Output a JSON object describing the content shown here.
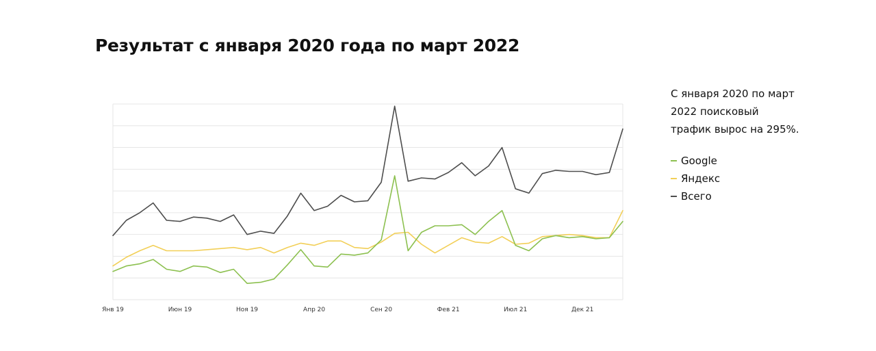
{
  "title": "Результат с января 2020 года по март 2022",
  "sidebar": {
    "text": "С января 2020 по март 2022 поисковый трафик вырос на 295%."
  },
  "colors": {
    "google": "#8cc04f",
    "yandex": "#f2cf57",
    "total": "#4d4d4d",
    "grid": "#e6e6e6",
    "background": "#ffffff"
  },
  "chart_data": {
    "type": "line",
    "xlabel": "",
    "ylabel": "",
    "x_ticks": [
      "Янв 19",
      "Июн 19",
      "Ноя 19",
      "Апр 20",
      "Сен 20",
      "Фев 21",
      "Июл 21",
      "Дек 21"
    ],
    "x": [
      "Янв 19",
      "Фев 19",
      "Мар 19",
      "Апр 19",
      "Май 19",
      "Июн 19",
      "Июл 19",
      "Авг 19",
      "Сен 19",
      "Окт 19",
      "Ноя 19",
      "Дек 19",
      "Янв 20",
      "Фев 20",
      "Мар 20",
      "Апр 20",
      "Май 20",
      "Июн 20",
      "Июл 20",
      "Авг 20",
      "Сен 20",
      "Окт 20",
      "Ноя 20",
      "Дек 20",
      "Янв 21",
      "Фев 21",
      "Мар 21",
      "Апр 21",
      "Май 21",
      "Июн 21",
      "Июл 21",
      "Авг 21",
      "Сен 21",
      "Окт 21",
      "Ноя 21",
      "Дек 21",
      "Янв 22",
      "Фев 22",
      "Мар 22"
    ],
    "ylim": [
      0,
      9
    ],
    "y_gridlines": 9,
    "grid": true,
    "y_tick_labels": false,
    "legend": "right",
    "series": [
      {
        "name": "Google",
        "color_key": "google",
        "values": [
          1.3,
          1.55,
          1.65,
          1.85,
          1.4,
          1.3,
          1.55,
          1.5,
          1.25,
          1.4,
          0.75,
          0.8,
          0.95,
          1.6,
          2.3,
          1.55,
          1.5,
          2.1,
          2.05,
          2.15,
          2.75,
          5.7,
          2.25,
          3.1,
          3.4,
          3.4,
          3.45,
          3.0,
          3.6,
          4.1,
          2.5,
          2.25,
          2.8,
          2.95,
          2.85,
          2.9,
          2.8,
          2.85,
          3.6
        ]
      },
      {
        "name": "Яндекс",
        "color_key": "yandex",
        "values": [
          1.55,
          1.95,
          2.25,
          2.5,
          2.25,
          2.25,
          2.25,
          2.3,
          2.35,
          2.4,
          2.3,
          2.4,
          2.15,
          2.4,
          2.6,
          2.5,
          2.7,
          2.7,
          2.4,
          2.35,
          2.65,
          3.05,
          3.1,
          2.55,
          2.15,
          2.5,
          2.85,
          2.65,
          2.6,
          2.9,
          2.55,
          2.6,
          2.9,
          2.95,
          3.0,
          2.95,
          2.85,
          2.85,
          4.1
        ]
      },
      {
        "name": "Всего",
        "color_key": "total",
        "values": [
          2.95,
          3.65,
          4.0,
          4.45,
          3.65,
          3.6,
          3.8,
          3.75,
          3.6,
          3.9,
          3.0,
          3.15,
          3.05,
          3.85,
          4.9,
          4.1,
          4.3,
          4.8,
          4.5,
          4.55,
          5.4,
          8.9,
          5.45,
          5.6,
          5.55,
          5.85,
          6.3,
          5.7,
          6.15,
          7.0,
          5.1,
          4.9,
          5.8,
          5.95,
          5.9,
          5.9,
          5.75,
          5.85,
          7.85
        ]
      }
    ]
  }
}
